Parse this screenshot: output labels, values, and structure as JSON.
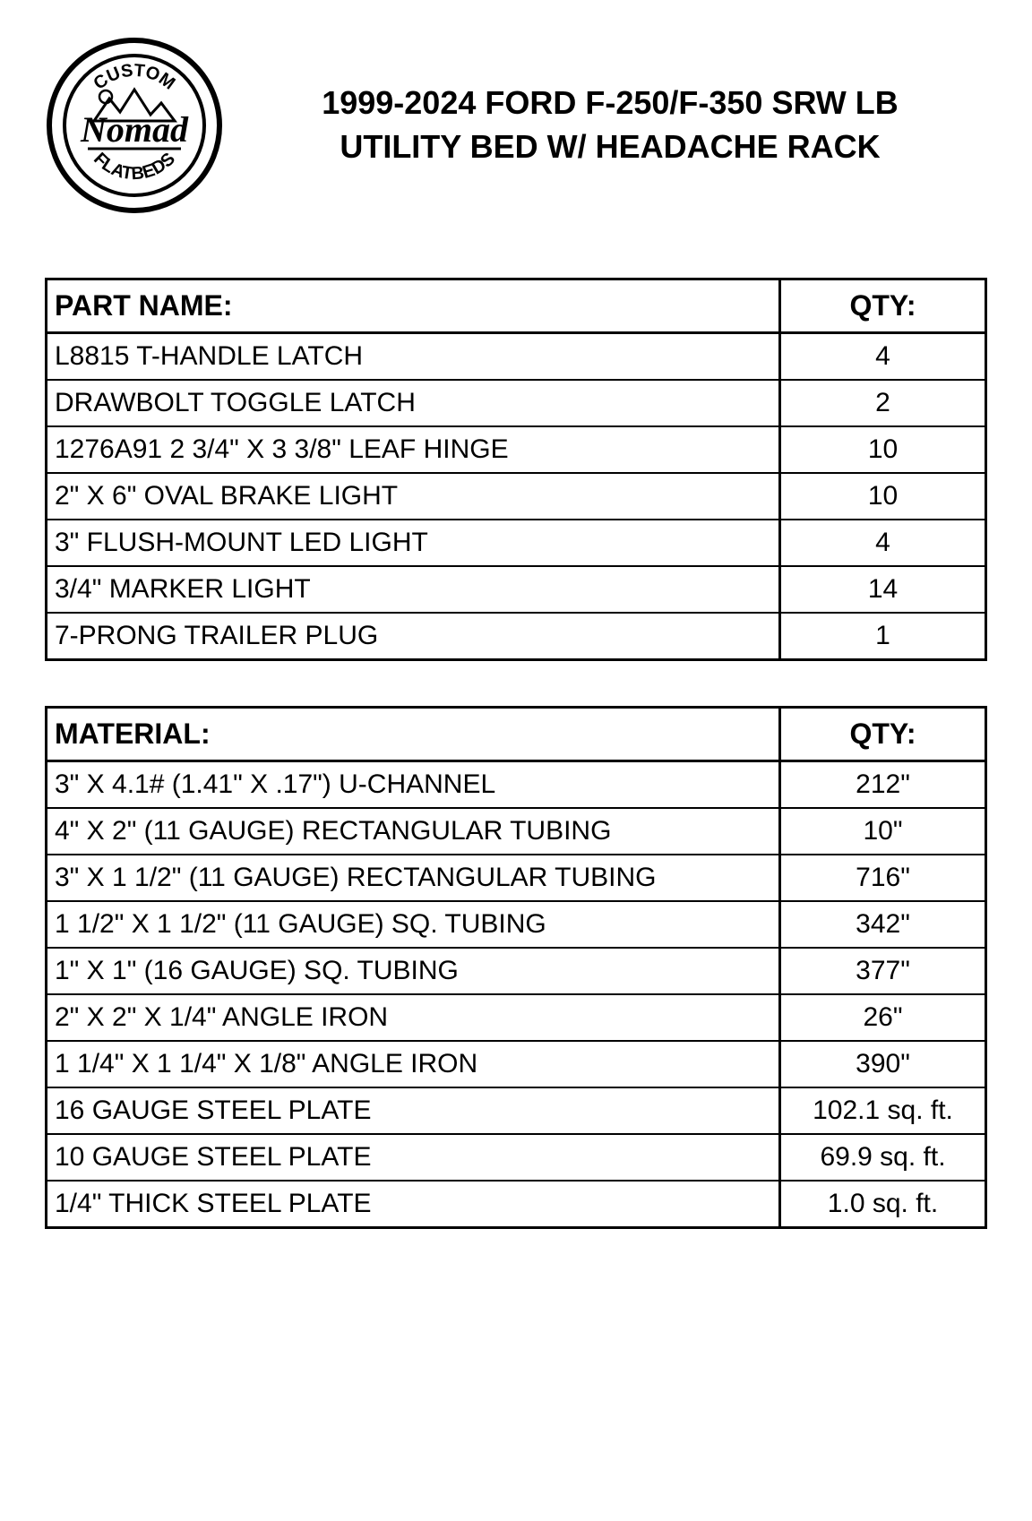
{
  "logo": {
    "top_text": "CUSTOM",
    "script_text": "Nomad",
    "bottom_text": "FLATBEDS"
  },
  "title_line1": "1999-2024 FORD F-250/F-350 SRW LB",
  "title_line2": "UTILITY BED W/ HEADACHE RACK",
  "parts_table": {
    "header_name": "PART NAME:",
    "header_qty": "QTY:",
    "rows": [
      {
        "name": "L8815 T-HANDLE LATCH",
        "qty": "4"
      },
      {
        "name": "DRAWBOLT TOGGLE LATCH",
        "qty": "2"
      },
      {
        "name": "1276A91 2 3/4\" X 3 3/8\" LEAF HINGE",
        "qty": "10"
      },
      {
        "name": "2\" X 6\" OVAL BRAKE LIGHT",
        "qty": "10"
      },
      {
        "name": "3\" FLUSH-MOUNT LED LIGHT",
        "qty": "4"
      },
      {
        "name": "3/4\" MARKER LIGHT",
        "qty": "14"
      },
      {
        "name": "7-PRONG TRAILER PLUG",
        "qty": "1"
      }
    ]
  },
  "materials_table": {
    "header_name": "MATERIAL:",
    "header_qty": "QTY:",
    "rows": [
      {
        "name": "3\" X 4.1# (1.41\" X .17\") U-CHANNEL",
        "qty": "212\""
      },
      {
        "name": "4\" X 2\" (11 GAUGE) RECTANGULAR TUBING",
        "qty": "10\""
      },
      {
        "name": "3\" X 1 1/2\" (11 GAUGE) RECTANGULAR TUBING",
        "qty": "716\""
      },
      {
        "name": "1 1/2\" X 1 1/2\" (11 GAUGE) SQ. TUBING",
        "qty": "342\""
      },
      {
        "name": "1\" X 1\" (16 GAUGE) SQ. TUBING",
        "qty": "377\""
      },
      {
        "name": "2\" X 2\" X 1/4\" ANGLE IRON",
        "qty": "26\""
      },
      {
        "name": "1 1/4\" X 1 1/4\" X 1/8\" ANGLE IRON",
        "qty": "390\""
      },
      {
        "name": "16 GAUGE STEEL PLATE",
        "qty": "102.1 sq. ft."
      },
      {
        "name": "10 GAUGE STEEL PLATE",
        "qty": "69.9 sq. ft."
      },
      {
        "name": "1/4\" THICK STEEL PLATE",
        "qty": "1.0 sq. ft."
      }
    ]
  },
  "styling": {
    "background_color": "#ffffff",
    "text_color": "#000000",
    "border_color": "#000000",
    "title_fontsize": 36,
    "header_fontsize": 32,
    "cell_fontsize": 30,
    "outer_border_width": 3,
    "inner_border_width": 2,
    "table_type": "table",
    "parts_col_widths": [
      "auto",
      "230px"
    ],
    "materials_col_widths": [
      "auto",
      "230px"
    ]
  }
}
